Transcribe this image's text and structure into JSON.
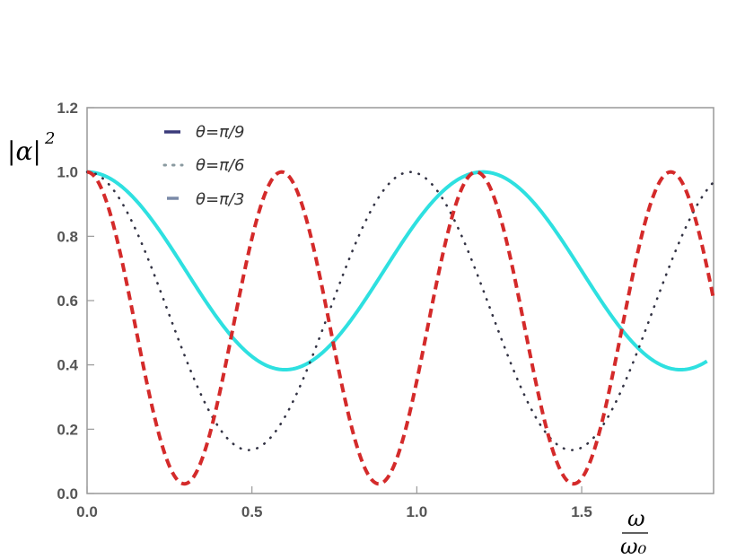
{
  "chart_data": {
    "type": "line",
    "title": "",
    "ylabel": "|α|²",
    "xlabel_num": "ω",
    "xlabel_den": "ω₀",
    "xlim": [
      0,
      1.9
    ],
    "ylim": [
      0,
      1.2
    ],
    "xticks": [
      0.0,
      0.5,
      1.0,
      1.5
    ],
    "xtick_labels": [
      "0.0",
      "0.5",
      "1.0",
      "1.5"
    ],
    "yticks": [
      0.0,
      0.2,
      0.4,
      0.6,
      0.8,
      1.0,
      1.2
    ],
    "ytick_labels": [
      "0.0",
      "0.2",
      "0.4",
      "0.6",
      "0.8",
      "1.0",
      "1.2"
    ],
    "grid": false,
    "legend_position": "top-left",
    "legend": [
      {
        "label": "θ=π/9",
        "color": "#3a3a7a",
        "style": "solid"
      },
      {
        "label": "θ=π/6",
        "color": "#8a9aa0",
        "style": "dotted"
      },
      {
        "label": "θ=π/3",
        "color": "#7a8aa8",
        "style": "dashed"
      }
    ],
    "series": [
      {
        "style": "solid",
        "color": "#2ee0e0",
        "x_range": [
          0,
          1.88
        ],
        "min": 0.385,
        "max": 1.0,
        "period": 1.2
      },
      {
        "style": "dotted",
        "color": "#333344",
        "x_range": [
          0,
          1.9
        ],
        "min": 0.135,
        "max": 1.0,
        "period": 0.98
      },
      {
        "style": "dashed",
        "color": "#d42a2a",
        "x_range": [
          0,
          1.9
        ],
        "min": 0.03,
        "max": 1.0,
        "period": 0.59
      }
    ]
  }
}
